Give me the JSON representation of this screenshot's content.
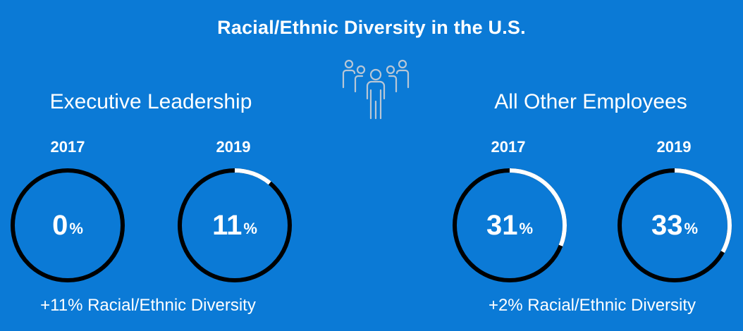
{
  "title": "Racial/Ethnic Diversity in the U.S.",
  "icon": "group-of-people-icon",
  "colors": {
    "background": "#0b7ad6",
    "ring_base": "#000000",
    "ring_fill": "#ffffff",
    "text": "#ffffff",
    "icon": "#b9c7d6"
  },
  "sections": [
    {
      "title": "Executive Leadership",
      "change": "+11% Racial/Ethnic Diversity",
      "items": [
        {
          "year": "2017",
          "value": "0",
          "unit": "%"
        },
        {
          "year": "2019",
          "value": "11",
          "unit": "%"
        }
      ]
    },
    {
      "title": "All Other Employees",
      "change": "+2% Racial/Ethnic Diversity",
      "items": [
        {
          "year": "2017",
          "value": "31",
          "unit": "%"
        },
        {
          "year": "2019",
          "value": "33",
          "unit": "%"
        }
      ]
    }
  ],
  "chart_data": {
    "type": "pie",
    "title": "Racial/Ethnic Diversity in the U.S.",
    "groups": [
      {
        "name": "Executive Leadership",
        "categories": [
          "2017",
          "2019"
        ],
        "values": [
          0,
          11
        ],
        "unit": "%"
      },
      {
        "name": "All Other Employees",
        "categories": [
          "2017",
          "2019"
        ],
        "values": [
          31,
          33
        ],
        "unit": "%"
      }
    ]
  }
}
